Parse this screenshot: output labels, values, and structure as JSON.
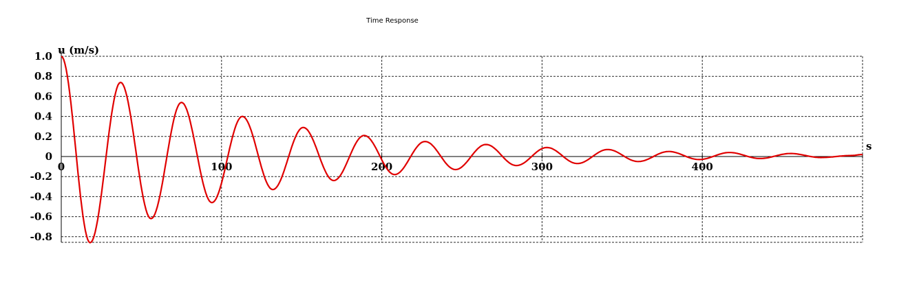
{
  "chart_data": {
    "type": "line",
    "title": "Time Response",
    "ylabel": "u (m/s)",
    "xlabel": "s",
    "xlim": [
      0,
      500
    ],
    "ylim": [
      -0.85,
      1.0
    ],
    "x_ticks": [
      0,
      100,
      200,
      300,
      400
    ],
    "x_tick_labels": [
      "0",
      "100",
      "200",
      "300",
      "400"
    ],
    "y_ticks": [
      1.0,
      0.8,
      0.6,
      0.4,
      0.2,
      0,
      -0.2,
      -0.4,
      -0.6,
      -0.8
    ],
    "y_tick_labels": [
      "1.0",
      "0.8",
      "0.6",
      "0.4",
      "0.2",
      "0",
      "-0.2",
      "-0.4",
      "-0.6",
      "-0.8"
    ],
    "grid": true,
    "series": [
      {
        "color": "#e00000",
        "x": [
          0,
          18,
          37,
          56,
          75,
          94,
          113,
          132,
          151,
          170,
          189,
          208,
          227,
          246,
          265,
          284,
          303,
          322,
          341,
          360,
          379,
          398,
          417,
          436,
          455,
          474,
          493,
          500
        ],
        "y": [
          1.0,
          -0.86,
          0.74,
          -0.62,
          0.54,
          -0.46,
          0.4,
          -0.33,
          0.29,
          -0.24,
          0.21,
          -0.18,
          0.15,
          -0.13,
          0.12,
          -0.09,
          0.09,
          -0.07,
          0.07,
          -0.05,
          0.05,
          -0.03,
          0.04,
          -0.02,
          0.03,
          -0.01,
          0.01,
          0.02
        ]
      }
    ]
  }
}
